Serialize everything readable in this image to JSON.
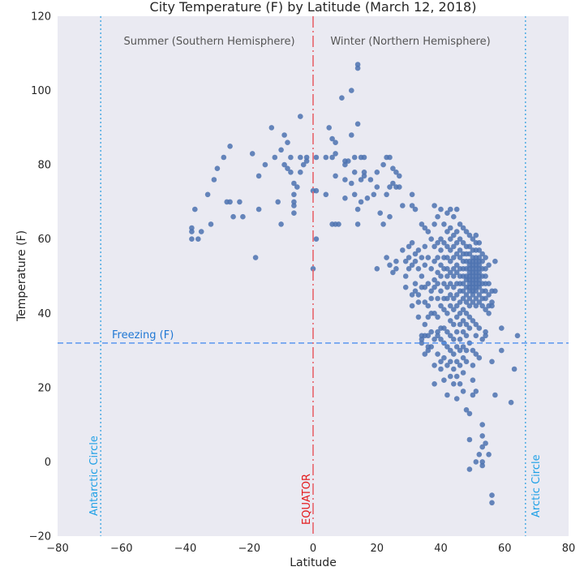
{
  "chart_data": {
    "type": "scatter",
    "title": "City Temperature (F) by Latitude (March 12, 2018)",
    "xlabel": "Latitude",
    "ylabel": "Temperature (F)",
    "xlim": [
      -80,
      80
    ],
    "ylim": [
      -20,
      120
    ],
    "xticks": [
      "−80",
      "−60",
      "−40",
      "−20",
      "0",
      "20",
      "40",
      "60",
      "80"
    ],
    "yticks": [
      "−20",
      "0",
      "20",
      "40",
      "60",
      "80",
      "100",
      "120"
    ],
    "grid": false,
    "colors": {
      "background": "#eaeaf2",
      "points": "#4c72b0",
      "freezing": "#4c8ef0",
      "equator": "#e8646c",
      "circles": "#33a1e0"
    },
    "annotations": {
      "summer": "Summer (Southern Hemisphere)",
      "winter": "Winter (Northern Hemisphere)",
      "freezing": "Freezing (F)",
      "equator": "EQUATOR",
      "antarctic": "Antarctic Circle",
      "arctic": "Arctic Circle"
    },
    "reference_lines": [
      {
        "name": "freezing",
        "axis": "y",
        "value": 32
      },
      {
        "name": "equator",
        "axis": "x",
        "value": 0
      },
      {
        "name": "antarctic",
        "axis": "x",
        "value": -66.5
      },
      {
        "name": "arctic",
        "axis": "x",
        "value": 66.5
      }
    ],
    "points": [
      [
        -38,
        63
      ],
      [
        -38,
        62
      ],
      [
        -38,
        60
      ],
      [
        -37,
        68
      ],
      [
        -36,
        60
      ],
      [
        -35,
        62
      ],
      [
        -33,
        72
      ],
      [
        -32,
        64
      ],
      [
        -31,
        76
      ],
      [
        -30,
        79
      ],
      [
        -28,
        82
      ],
      [
        -27,
        70
      ],
      [
        -26,
        85
      ],
      [
        -26,
        70
      ],
      [
        -25,
        66
      ],
      [
        -23,
        70
      ],
      [
        -22,
        66
      ],
      [
        -19,
        83
      ],
      [
        -18,
        55
      ],
      [
        -17,
        77
      ],
      [
        -17,
        68
      ],
      [
        -15,
        80
      ],
      [
        -13,
        90
      ],
      [
        -12,
        82
      ],
      [
        -11,
        70
      ],
      [
        -10,
        84
      ],
      [
        -10,
        64
      ],
      [
        -9,
        88
      ],
      [
        -9,
        80
      ],
      [
        -8,
        86
      ],
      [
        -8,
        79
      ],
      [
        -7,
        82
      ],
      [
        -7,
        78
      ],
      [
        -6,
        75
      ],
      [
        -6,
        72
      ],
      [
        -6,
        70
      ],
      [
        -6,
        69
      ],
      [
        -6,
        67
      ],
      [
        -5,
        74
      ],
      [
        -4,
        82
      ],
      [
        -4,
        78
      ],
      [
        -4,
        93
      ],
      [
        -3,
        80
      ],
      [
        -2,
        82
      ],
      [
        -2,
        81
      ],
      [
        0,
        73
      ],
      [
        0,
        52
      ],
      [
        1,
        73
      ],
      [
        1,
        60
      ],
      [
        1,
        82
      ],
      [
        4,
        72
      ],
      [
        4,
        82
      ],
      [
        5,
        90
      ],
      [
        6,
        82
      ],
      [
        6,
        64
      ],
      [
        6,
        87
      ],
      [
        7,
        86
      ],
      [
        7,
        77
      ],
      [
        7,
        64
      ],
      [
        7,
        83
      ],
      [
        8,
        64
      ],
      [
        9,
        98
      ],
      [
        10,
        80
      ],
      [
        10,
        71
      ],
      [
        10,
        76
      ],
      [
        10,
        81
      ],
      [
        11,
        81
      ],
      [
        12,
        100
      ],
      [
        12,
        88
      ],
      [
        12,
        75
      ],
      [
        13,
        82
      ],
      [
        13,
        78
      ],
      [
        13,
        72
      ],
      [
        14,
        106
      ],
      [
        14,
        107
      ],
      [
        14,
        91
      ],
      [
        14,
        68
      ],
      [
        14,
        64
      ],
      [
        15,
        82
      ],
      [
        15,
        76
      ],
      [
        15,
        70
      ],
      [
        16,
        78
      ],
      [
        16,
        77
      ],
      [
        16,
        82
      ],
      [
        17,
        71
      ],
      [
        18,
        76
      ],
      [
        19,
        72
      ],
      [
        20,
        78
      ],
      [
        20,
        52
      ],
      [
        20,
        74
      ],
      [
        21,
        67
      ],
      [
        22,
        80
      ],
      [
        22,
        64
      ],
      [
        23,
        82
      ],
      [
        23,
        55
      ],
      [
        23,
        72
      ],
      [
        24,
        82
      ],
      [
        24,
        53
      ],
      [
        24,
        74
      ],
      [
        24,
        66
      ],
      [
        25,
        79
      ],
      [
        25,
        75
      ],
      [
        25,
        51
      ],
      [
        26,
        74
      ],
      [
        26,
        78
      ],
      [
        26,
        54
      ],
      [
        26,
        52
      ],
      [
        27,
        74
      ],
      [
        27,
        77
      ],
      [
        28,
        69
      ],
      [
        28,
        57
      ],
      [
        29,
        54
      ],
      [
        29,
        50
      ],
      [
        29,
        47
      ],
      [
        30,
        58
      ],
      [
        30,
        55
      ],
      [
        30,
        52
      ],
      [
        31,
        59
      ],
      [
        31,
        53
      ],
      [
        31,
        72
      ],
      [
        31,
        69
      ],
      [
        31,
        45
      ],
      [
        31,
        42
      ],
      [
        32,
        56
      ],
      [
        32,
        54
      ],
      [
        32,
        68
      ],
      [
        32,
        48
      ],
      [
        32,
        46
      ],
      [
        33,
        57
      ],
      [
        33,
        52
      ],
      [
        33,
        43
      ],
      [
        33,
        39
      ],
      [
        33,
        45
      ],
      [
        34,
        64
      ],
      [
        34,
        55
      ],
      [
        34,
        50
      ],
      [
        34,
        47
      ],
      [
        34,
        34
      ],
      [
        34,
        33
      ],
      [
        34,
        32
      ],
      [
        35,
        63
      ],
      [
        35,
        58
      ],
      [
        35,
        53
      ],
      [
        35,
        47
      ],
      [
        35,
        43
      ],
      [
        35,
        37
      ],
      [
        35,
        34
      ],
      [
        35,
        29
      ],
      [
        36,
        62
      ],
      [
        36,
        55
      ],
      [
        36,
        48
      ],
      [
        36,
        42
      ],
      [
        36,
        39
      ],
      [
        36,
        34
      ],
      [
        36,
        31
      ],
      [
        36,
        30
      ],
      [
        37,
        60
      ],
      [
        37,
        52
      ],
      [
        37,
        46
      ],
      [
        37,
        44
      ],
      [
        37,
        40
      ],
      [
        37,
        31
      ],
      [
        37,
        35
      ],
      [
        38,
        69
      ],
      [
        38,
        64
      ],
      [
        38,
        58
      ],
      [
        38,
        54
      ],
      [
        38,
        49
      ],
      [
        38,
        47
      ],
      [
        38,
        40
      ],
      [
        38,
        33
      ],
      [
        38,
        26
      ],
      [
        38,
        21
      ],
      [
        39,
        66
      ],
      [
        39,
        59
      ],
      [
        39,
        55
      ],
      [
        39,
        51
      ],
      [
        39,
        48
      ],
      [
        39,
        44
      ],
      [
        39,
        39
      ],
      [
        39,
        34
      ],
      [
        39,
        35
      ],
      [
        39,
        29
      ],
      [
        40,
        68
      ],
      [
        40,
        60
      ],
      [
        40,
        57
      ],
      [
        40,
        53
      ],
      [
        40,
        50
      ],
      [
        40,
        46
      ],
      [
        40,
        42
      ],
      [
        40,
        36
      ],
      [
        40,
        33
      ],
      [
        40,
        27
      ],
      [
        40,
        25
      ],
      [
        41,
        64
      ],
      [
        41,
        59
      ],
      [
        41,
        55
      ],
      [
        41,
        52
      ],
      [
        41,
        48
      ],
      [
        41,
        44
      ],
      [
        41,
        41
      ],
      [
        41,
        36
      ],
      [
        41,
        32
      ],
      [
        41,
        28
      ],
      [
        41,
        22
      ],
      [
        42,
        67
      ],
      [
        42,
        62
      ],
      [
        42,
        58
      ],
      [
        42,
        55
      ],
      [
        42,
        52
      ],
      [
        42,
        50
      ],
      [
        42,
        47
      ],
      [
        42,
        44
      ],
      [
        42,
        40
      ],
      [
        42,
        35
      ],
      [
        42,
        31
      ],
      [
        42,
        26
      ],
      [
        42,
        18
      ],
      [
        43,
        68
      ],
      [
        43,
        63
      ],
      [
        43,
        60
      ],
      [
        43,
        57
      ],
      [
        43,
        54
      ],
      [
        43,
        51
      ],
      [
        43,
        48
      ],
      [
        43,
        45
      ],
      [
        43,
        42
      ],
      [
        43,
        38
      ],
      [
        43,
        34
      ],
      [
        43,
        30
      ],
      [
        43,
        27
      ],
      [
        43,
        23
      ],
      [
        44,
        66
      ],
      [
        44,
        61
      ],
      [
        44,
        58
      ],
      [
        44,
        55
      ],
      [
        44,
        52
      ],
      [
        44,
        50
      ],
      [
        44,
        47
      ],
      [
        44,
        44
      ],
      [
        44,
        41
      ],
      [
        44,
        37
      ],
      [
        44,
        33
      ],
      [
        44,
        29
      ],
      [
        44,
        25
      ],
      [
        44,
        21
      ],
      [
        45,
        68
      ],
      [
        45,
        62
      ],
      [
        45,
        59
      ],
      [
        45,
        56
      ],
      [
        45,
        53
      ],
      [
        45,
        51
      ],
      [
        45,
        48
      ],
      [
        45,
        45
      ],
      [
        45,
        42
      ],
      [
        45,
        39
      ],
      [
        45,
        35
      ],
      [
        45,
        31
      ],
      [
        45,
        27
      ],
      [
        45,
        23
      ],
      [
        45,
        17
      ],
      [
        46,
        64
      ],
      [
        46,
        60
      ],
      [
        46,
        57
      ],
      [
        46,
        55
      ],
      [
        46,
        52
      ],
      [
        46,
        50
      ],
      [
        46,
        48
      ],
      [
        46,
        46
      ],
      [
        46,
        43
      ],
      [
        46,
        40
      ],
      [
        46,
        37
      ],
      [
        46,
        33
      ],
      [
        46,
        30
      ],
      [
        46,
        26
      ],
      [
        46,
        21
      ],
      [
        47,
        63
      ],
      [
        47,
        59
      ],
      [
        47,
        56
      ],
      [
        47,
        54
      ],
      [
        47,
        52
      ],
      [
        47,
        50
      ],
      [
        47,
        48
      ],
      [
        47,
        46
      ],
      [
        47,
        44
      ],
      [
        47,
        41
      ],
      [
        47,
        38
      ],
      [
        47,
        35
      ],
      [
        47,
        31
      ],
      [
        47,
        28
      ],
      [
        47,
        24
      ],
      [
        47,
        19
      ],
      [
        48,
        62
      ],
      [
        48,
        58
      ],
      [
        48,
        56
      ],
      [
        48,
        54
      ],
      [
        48,
        52
      ],
      [
        48,
        50
      ],
      [
        48,
        49
      ],
      [
        48,
        47
      ],
      [
        48,
        45
      ],
      [
        48,
        43
      ],
      [
        48,
        40
      ],
      [
        48,
        37
      ],
      [
        48,
        34
      ],
      [
        48,
        30
      ],
      [
        48,
        27
      ],
      [
        48,
        14
      ],
      [
        49,
        61
      ],
      [
        49,
        58
      ],
      [
        49,
        56
      ],
      [
        49,
        54
      ],
      [
        49,
        53
      ],
      [
        49,
        52
      ],
      [
        49,
        51
      ],
      [
        49,
        50
      ],
      [
        49,
        49
      ],
      [
        49,
        48
      ],
      [
        49,
        47
      ],
      [
        49,
        46
      ],
      [
        49,
        44
      ],
      [
        49,
        42
      ],
      [
        49,
        39
      ],
      [
        49,
        36
      ],
      [
        49,
        32
      ],
      [
        49,
        13
      ],
      [
        49,
        6
      ],
      [
        49,
        -2
      ],
      [
        50,
        60
      ],
      [
        50,
        57
      ],
      [
        50,
        55
      ],
      [
        50,
        54
      ],
      [
        50,
        53
      ],
      [
        50,
        52
      ],
      [
        50,
        51
      ],
      [
        50,
        50
      ],
      [
        50,
        49
      ],
      [
        50,
        48
      ],
      [
        50,
        47
      ],
      [
        50,
        46
      ],
      [
        50,
        45
      ],
      [
        50,
        43
      ],
      [
        50,
        38
      ],
      [
        50,
        30
      ],
      [
        50,
        26
      ],
      [
        50,
        22
      ],
      [
        50,
        18
      ],
      [
        51,
        61
      ],
      [
        51,
        59
      ],
      [
        51,
        57
      ],
      [
        51,
        55
      ],
      [
        51,
        54
      ],
      [
        51,
        53
      ],
      [
        51,
        52
      ],
      [
        51,
        51
      ],
      [
        51,
        50
      ],
      [
        51,
        49
      ],
      [
        51,
        48
      ],
      [
        51,
        47
      ],
      [
        51,
        46
      ],
      [
        51,
        44
      ],
      [
        51,
        42
      ],
      [
        51,
        37
      ],
      [
        51,
        34
      ],
      [
        51,
        29
      ],
      [
        51,
        19
      ],
      [
        51,
        0
      ],
      [
        52,
        59
      ],
      [
        52,
        57
      ],
      [
        52,
        55
      ],
      [
        52,
        54
      ],
      [
        52,
        53
      ],
      [
        52,
        52
      ],
      [
        52,
        51
      ],
      [
        52,
        50
      ],
      [
        52,
        49
      ],
      [
        52,
        48
      ],
      [
        52,
        47
      ],
      [
        52,
        45
      ],
      [
        52,
        43
      ],
      [
        52,
        36
      ],
      [
        52,
        28
      ],
      [
        52,
        2
      ],
      [
        53,
        56
      ],
      [
        53,
        54
      ],
      [
        53,
        52
      ],
      [
        53,
        50
      ],
      [
        53,
        48
      ],
      [
        53,
        46
      ],
      [
        53,
        44
      ],
      [
        53,
        42
      ],
      [
        53,
        33
      ],
      [
        53,
        10
      ],
      [
        53,
        7
      ],
      [
        53,
        4
      ],
      [
        53,
        -1
      ],
      [
        53,
        0
      ],
      [
        54,
        55
      ],
      [
        54,
        52
      ],
      [
        54,
        50
      ],
      [
        54,
        48
      ],
      [
        54,
        46
      ],
      [
        54,
        44
      ],
      [
        54,
        41
      ],
      [
        54,
        35
      ],
      [
        54,
        34
      ],
      [
        54,
        5
      ],
      [
        55,
        53
      ],
      [
        55,
        48
      ],
      [
        55,
        45
      ],
      [
        55,
        42
      ],
      [
        55,
        40
      ],
      [
        55,
        2
      ],
      [
        56,
        46
      ],
      [
        56,
        43
      ],
      [
        56,
        42
      ],
      [
        56,
        27
      ],
      [
        56,
        -9
      ],
      [
        56,
        -11
      ],
      [
        57,
        54
      ],
      [
        57,
        46
      ],
      [
        57,
        18
      ],
      [
        59,
        36
      ],
      [
        59,
        30
      ],
      [
        62,
        16
      ],
      [
        63,
        25
      ],
      [
        64,
        34
      ]
    ]
  }
}
